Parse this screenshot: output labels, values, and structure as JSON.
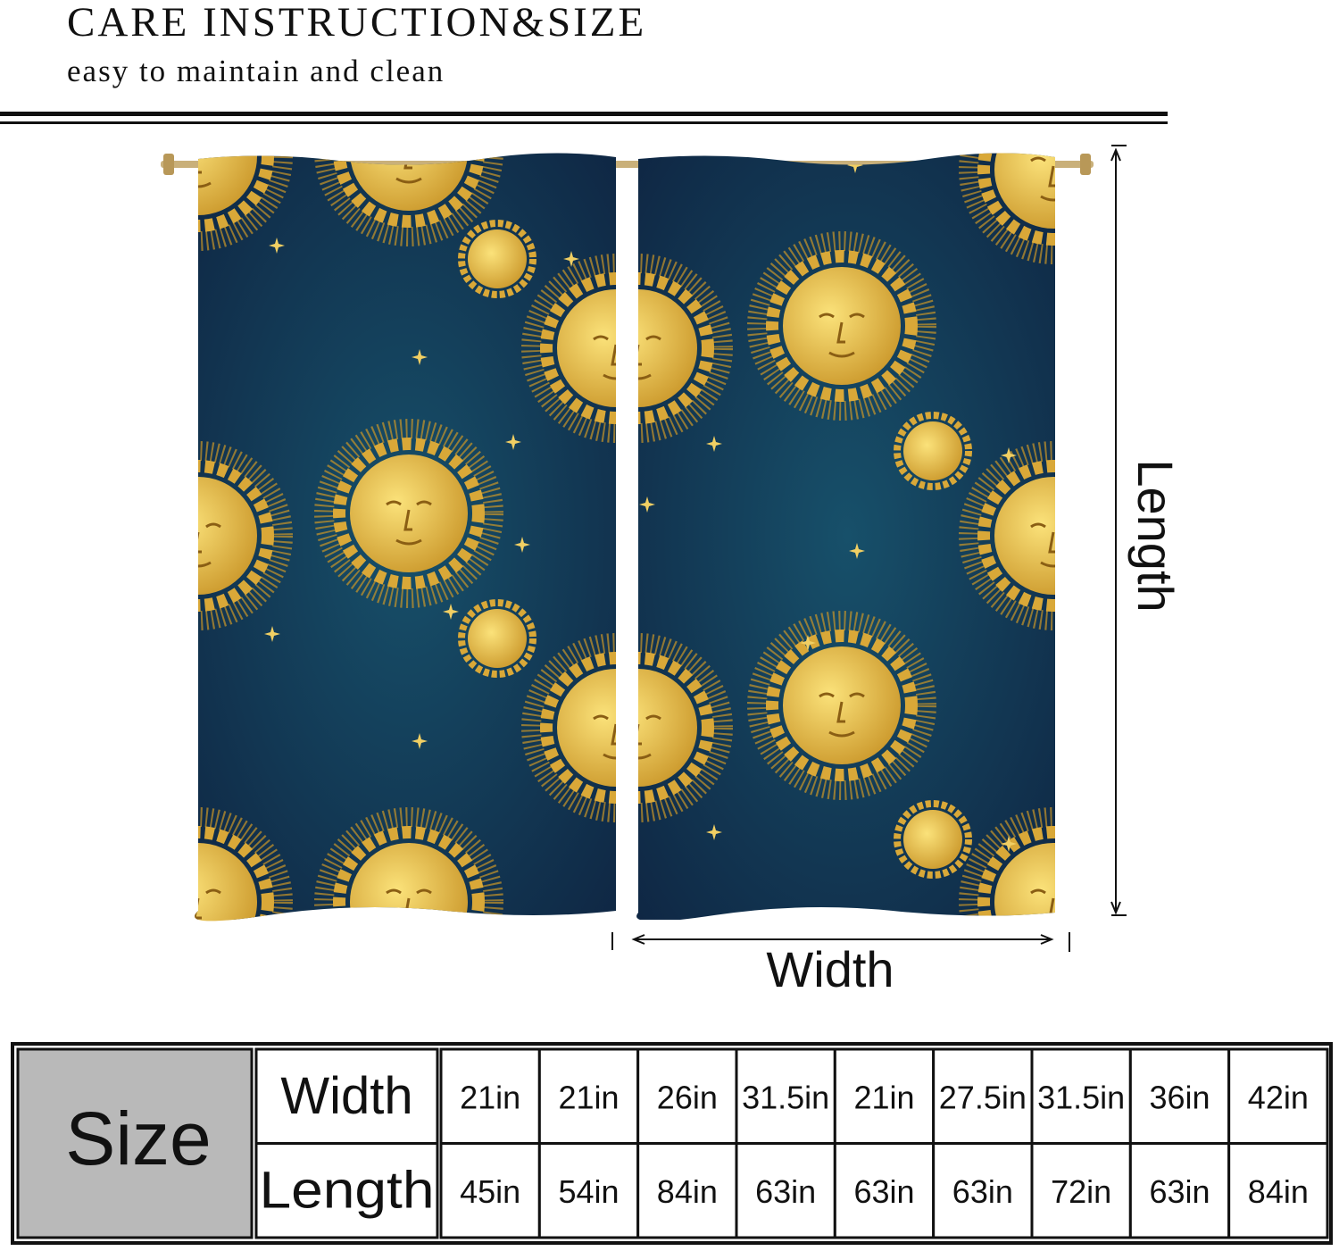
{
  "header": {
    "title": "CARE INSTRUCTION&SIZE",
    "subtitle": "easy to maintain and clean"
  },
  "diagram": {
    "width_label": "Width",
    "length_label": "Length"
  },
  "table": {
    "label": "Size",
    "rows": [
      {
        "header": "Width",
        "cells": [
          "21in",
          "21in",
          "26in",
          "31.5in",
          "21in",
          "27.5in",
          "31.5in",
          "36in",
          "42in"
        ]
      },
      {
        "header": "Length",
        "cells": [
          "45in",
          "54in",
          "84in",
          "63in",
          "63in",
          "63in",
          "72in",
          "63in",
          "84in"
        ]
      }
    ]
  }
}
